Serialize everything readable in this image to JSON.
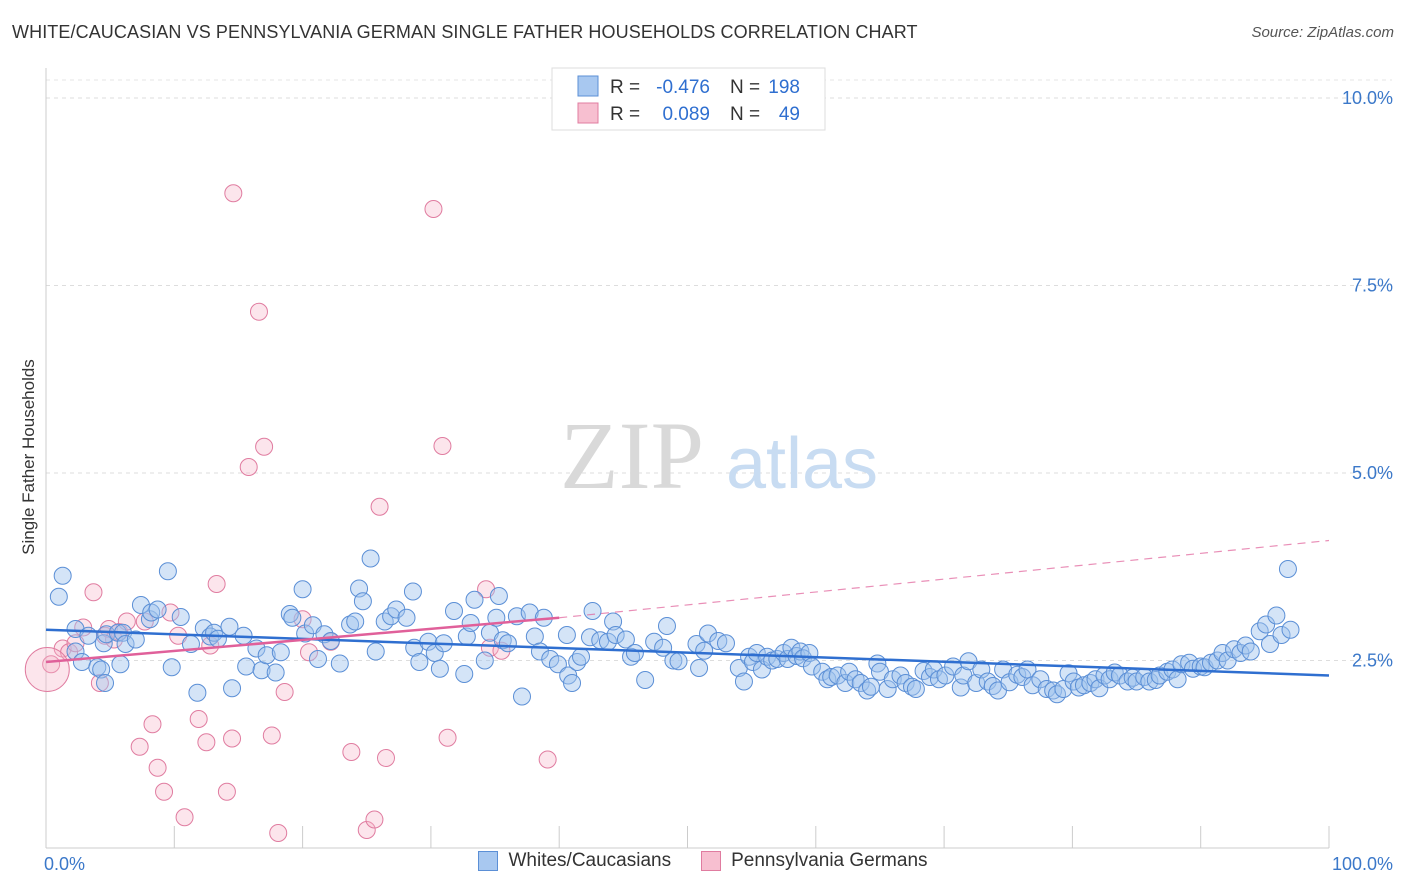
{
  "title": "WHITE/CAUCASIAN VS PENNSYLVANIA GERMAN SINGLE FATHER HOUSEHOLDS CORRELATION CHART",
  "source": "Source: ZipAtlas.com",
  "watermark": {
    "zip": "ZIP",
    "atlas": "atlas"
  },
  "stats_legend": {
    "rows": [
      {
        "r_label": "R =",
        "r_value": "-0.476",
        "n_label": "N =",
        "n_value": "198",
        "color": "#a8c8f0",
        "border": "#5b8fd6"
      },
      {
        "r_label": "R =",
        "r_value": "0.089",
        "n_label": "N =",
        "n_value": "49",
        "color": "#f7bfd0",
        "border": "#e07ca0"
      }
    ]
  },
  "bottom_legend": [
    {
      "label": "Whites/Caucasians",
      "color": "#a8c8f0",
      "border": "#5b8fd6"
    },
    {
      "label": "Pennsylvania Germans",
      "color": "#f7bfd0",
      "border": "#e07ca0"
    }
  ],
  "colors": {
    "blue_fill": "rgba(160,195,238,0.45)",
    "blue_stroke": "#5b8fd6",
    "blue_line": "#2f6fd0",
    "pink_fill": "rgba(247,180,200,0.35)",
    "pink_stroke": "#e07ca0",
    "pink_line": "#e0609a",
    "tick_text": "#3b78c9"
  },
  "chart_data": {
    "type": "scatter",
    "ylabel": "Single Father Households",
    "xlabel": "",
    "xlim": [
      0,
      100
    ],
    "ylim": [
      0,
      10.4
    ],
    "x_tick_labels": [
      "0.0%",
      "100.0%"
    ],
    "y_ticks": [
      2.5,
      5.0,
      7.5,
      10.0
    ],
    "y_tick_labels": [
      "2.5%",
      "5.0%",
      "7.5%",
      "10.0%"
    ],
    "grid": true,
    "series": [
      {
        "name": "Whites/Caucasians",
        "trend": {
          "x": [
            0,
            100
          ],
          "y": [
            2.91,
            2.3
          ]
        },
        "points": [
          [
            1,
            3.35
          ],
          [
            1.3,
            3.63
          ],
          [
            2.3,
            2.62
          ],
          [
            2.3,
            2.92
          ],
          [
            2.8,
            2.48
          ],
          [
            3.3,
            2.83
          ],
          [
            4.0,
            2.41
          ],
          [
            4.3,
            2.38
          ],
          [
            4.5,
            2.73
          ],
          [
            4.6,
            2.2
          ],
          [
            4.7,
            2.85
          ],
          [
            5.6,
            2.87
          ],
          [
            5.8,
            2.45
          ],
          [
            6.0,
            2.87
          ],
          [
            6.2,
            2.72
          ],
          [
            7.0,
            2.78
          ],
          [
            7.4,
            3.24
          ],
          [
            8.1,
            3.05
          ],
          [
            8.2,
            3.14
          ],
          [
            8.7,
            3.18
          ],
          [
            9.5,
            3.69
          ],
          [
            9.8,
            2.41
          ],
          [
            10.5,
            3.08
          ],
          [
            11.3,
            2.72
          ],
          [
            11.8,
            2.07
          ],
          [
            12.3,
            2.93
          ],
          [
            12.8,
            2.82
          ],
          [
            13.1,
            2.87
          ],
          [
            13.4,
            2.79
          ],
          [
            14.3,
            2.95
          ],
          [
            14.5,
            2.13
          ],
          [
            15.4,
            2.83
          ],
          [
            15.6,
            2.42
          ],
          [
            16.4,
            2.66
          ],
          [
            16.8,
            2.37
          ],
          [
            17.2,
            2.57
          ],
          [
            17.9,
            2.34
          ],
          [
            18.3,
            2.61
          ],
          [
            19.0,
            3.12
          ],
          [
            19.2,
            3.07
          ],
          [
            20.0,
            3.45
          ],
          [
            20.2,
            2.86
          ],
          [
            20.8,
            2.97
          ],
          [
            21.2,
            2.52
          ],
          [
            21.7,
            2.85
          ],
          [
            22.2,
            2.76
          ],
          [
            22.9,
            2.46
          ],
          [
            23.7,
            2.98
          ],
          [
            24.1,
            3.02
          ],
          [
            24.4,
            3.46
          ],
          [
            24.7,
            3.29
          ],
          [
            25.3,
            3.86
          ],
          [
            25.7,
            2.62
          ],
          [
            26.4,
            3.02
          ],
          [
            26.9,
            3.09
          ],
          [
            27.3,
            3.18
          ],
          [
            28.1,
            3.07
          ],
          [
            28.6,
            3.42
          ],
          [
            28.7,
            2.67
          ],
          [
            29.1,
            2.48
          ],
          [
            29.8,
            2.75
          ],
          [
            30.3,
            2.6
          ],
          [
            30.7,
            2.39
          ],
          [
            31.0,
            2.73
          ],
          [
            31.8,
            3.16
          ],
          [
            32.6,
            2.32
          ],
          [
            32.8,
            2.82
          ],
          [
            33.1,
            3.0
          ],
          [
            33.4,
            3.31
          ],
          [
            34.2,
            2.5
          ],
          [
            34.6,
            2.87
          ],
          [
            35.1,
            3.07
          ],
          [
            35.3,
            3.36
          ],
          [
            35.6,
            2.77
          ],
          [
            36.0,
            2.73
          ],
          [
            36.7,
            3.09
          ],
          [
            37.1,
            2.02
          ],
          [
            37.7,
            3.14
          ],
          [
            38.1,
            2.82
          ],
          [
            38.8,
            3.07
          ],
          [
            38.5,
            2.62
          ],
          [
            39.3,
            2.52
          ],
          [
            39.9,
            2.45
          ],
          [
            40.6,
            2.84
          ],
          [
            40.7,
            2.3
          ],
          [
            41.0,
            2.2
          ],
          [
            41.4,
            2.48
          ],
          [
            41.7,
            2.55
          ],
          [
            42.4,
            2.81
          ],
          [
            42.6,
            3.16
          ],
          [
            43.2,
            2.77
          ],
          [
            43.8,
            2.75
          ],
          [
            44.2,
            3.02
          ],
          [
            44.4,
            2.84
          ],
          [
            45.2,
            2.78
          ],
          [
            45.6,
            2.55
          ],
          [
            45.9,
            2.6
          ],
          [
            46.7,
            2.24
          ],
          [
            47.4,
            2.75
          ],
          [
            48.1,
            2.67
          ],
          [
            48.4,
            2.96
          ],
          [
            48.9,
            2.5
          ],
          [
            49.3,
            2.49
          ],
          [
            50.7,
            2.72
          ],
          [
            50.9,
            2.4
          ],
          [
            51.3,
            2.63
          ],
          [
            51.6,
            2.86
          ],
          [
            52.4,
            2.76
          ],
          [
            53.0,
            2.73
          ],
          [
            54.0,
            2.4
          ],
          [
            54.4,
            2.22
          ],
          [
            54.8,
            2.55
          ],
          [
            55.1,
            2.48
          ],
          [
            55.4,
            2.6
          ],
          [
            55.8,
            2.38
          ],
          [
            56.2,
            2.55
          ],
          [
            56.6,
            2.5
          ],
          [
            57.0,
            2.52
          ],
          [
            57.5,
            2.6
          ],
          [
            57.8,
            2.52
          ],
          [
            58.1,
            2.67
          ],
          [
            58.5,
            2.56
          ],
          [
            58.8,
            2.62
          ],
          [
            59.0,
            2.53
          ],
          [
            59.5,
            2.6
          ],
          [
            59.7,
            2.42
          ],
          [
            60.5,
            2.35
          ],
          [
            60.9,
            2.25
          ],
          [
            61.2,
            2.28
          ],
          [
            61.7,
            2.3
          ],
          [
            62.3,
            2.2
          ],
          [
            62.6,
            2.35
          ],
          [
            63.1,
            2.25
          ],
          [
            63.5,
            2.2
          ],
          [
            64.0,
            2.1
          ],
          [
            64.3,
            2.15
          ],
          [
            64.8,
            2.46
          ],
          [
            65.0,
            2.35
          ],
          [
            65.6,
            2.12
          ],
          [
            66.0,
            2.25
          ],
          [
            66.6,
            2.3
          ],
          [
            67.0,
            2.2
          ],
          [
            67.5,
            2.15
          ],
          [
            67.8,
            2.12
          ],
          [
            68.4,
            2.36
          ],
          [
            68.9,
            2.28
          ],
          [
            69.2,
            2.38
          ],
          [
            69.6,
            2.25
          ],
          [
            70.1,
            2.3
          ],
          [
            70.7,
            2.42
          ],
          [
            71.3,
            2.14
          ],
          [
            71.5,
            2.3
          ],
          [
            71.9,
            2.49
          ],
          [
            72.5,
            2.2
          ],
          [
            72.9,
            2.38
          ],
          [
            73.4,
            2.22
          ],
          [
            73.8,
            2.16
          ],
          [
            74.2,
            2.1
          ],
          [
            74.6,
            2.38
          ],
          [
            75.1,
            2.21
          ],
          [
            75.7,
            2.31
          ],
          [
            76.1,
            2.28
          ],
          [
            76.5,
            2.38
          ],
          [
            76.9,
            2.17
          ],
          [
            77.5,
            2.25
          ],
          [
            78.0,
            2.12
          ],
          [
            78.5,
            2.1
          ],
          [
            78.8,
            2.05
          ],
          [
            79.3,
            2.12
          ],
          [
            79.7,
            2.33
          ],
          [
            80.1,
            2.22
          ],
          [
            80.5,
            2.14
          ],
          [
            80.9,
            2.17
          ],
          [
            81.4,
            2.2
          ],
          [
            81.8,
            2.25
          ],
          [
            82.1,
            2.13
          ],
          [
            82.5,
            2.3
          ],
          [
            82.9,
            2.25
          ],
          [
            83.3,
            2.34
          ],
          [
            83.7,
            2.3
          ],
          [
            84.3,
            2.22
          ],
          [
            84.7,
            2.27
          ],
          [
            85.0,
            2.22
          ],
          [
            85.6,
            2.28
          ],
          [
            86.0,
            2.22
          ],
          [
            86.5,
            2.24
          ],
          [
            86.8,
            2.3
          ],
          [
            87.4,
            2.35
          ],
          [
            87.8,
            2.38
          ],
          [
            88.2,
            2.25
          ],
          [
            88.5,
            2.45
          ],
          [
            89.1,
            2.47
          ],
          [
            89.4,
            2.39
          ],
          [
            90.0,
            2.42
          ],
          [
            90.3,
            2.41
          ],
          [
            90.8,
            2.47
          ],
          [
            91.3,
            2.5
          ],
          [
            91.7,
            2.6
          ],
          [
            92.1,
            2.5
          ],
          [
            92.6,
            2.65
          ],
          [
            93.1,
            2.6
          ],
          [
            93.5,
            2.7
          ],
          [
            93.9,
            2.62
          ],
          [
            94.6,
            2.89
          ],
          [
            95.1,
            2.98
          ],
          [
            95.4,
            2.72
          ],
          [
            95.9,
            3.1
          ],
          [
            96.3,
            2.84
          ],
          [
            96.8,
            3.72
          ],
          [
            97.0,
            2.91
          ]
        ]
      },
      {
        "name": "Pennsylvania Germans",
        "trend": {
          "x": [
            0,
            40
          ],
          "y": [
            2.48,
            3.07
          ],
          "dashed_to": {
            "x": 100,
            "y": 4.1
          }
        },
        "points": [
          [
            0.4,
            2.45
          ],
          [
            1.3,
            2.66
          ],
          [
            1.8,
            2.61
          ],
          [
            2.3,
            2.73
          ],
          [
            2.9,
            2.94
          ],
          [
            3.7,
            3.41
          ],
          [
            4.2,
            2.2
          ],
          [
            4.6,
            2.83
          ],
          [
            4.9,
            2.92
          ],
          [
            5.3,
            2.78
          ],
          [
            5.7,
            2.88
          ],
          [
            6.3,
            3.02
          ],
          [
            7.3,
            1.35
          ],
          [
            7.7,
            3.02
          ],
          [
            8.3,
            1.65
          ],
          [
            8.7,
            1.07
          ],
          [
            9.2,
            0.75
          ],
          [
            9.7,
            3.14
          ],
          [
            10.3,
            2.83
          ],
          [
            10.8,
            0.41
          ],
          [
            11.9,
            1.72
          ],
          [
            12.5,
            1.41
          ],
          [
            12.8,
            2.7
          ],
          [
            13.3,
            3.52
          ],
          [
            14.1,
            0.75
          ],
          [
            14.5,
            1.46
          ],
          [
            14.6,
            8.73
          ],
          [
            15.8,
            5.08
          ],
          [
            16.6,
            7.15
          ],
          [
            17.0,
            5.35
          ],
          [
            17.6,
            1.5
          ],
          [
            18.1,
            0.2
          ],
          [
            18.6,
            2.08
          ],
          [
            20.0,
            3.05
          ],
          [
            20.5,
            2.61
          ],
          [
            22.2,
            2.75
          ],
          [
            23.8,
            1.28
          ],
          [
            25.0,
            0.24
          ],
          [
            25.6,
            0.38
          ],
          [
            26.0,
            4.55
          ],
          [
            26.5,
            1.2
          ],
          [
            30.2,
            8.52
          ],
          [
            30.9,
            5.36
          ],
          [
            31.3,
            1.47
          ],
          [
            34.3,
            3.45
          ],
          [
            34.6,
            2.67
          ],
          [
            35.5,
            2.63
          ],
          [
            39.1,
            1.18
          ],
          [
            0.1,
            2.38
          ]
        ]
      }
    ]
  }
}
